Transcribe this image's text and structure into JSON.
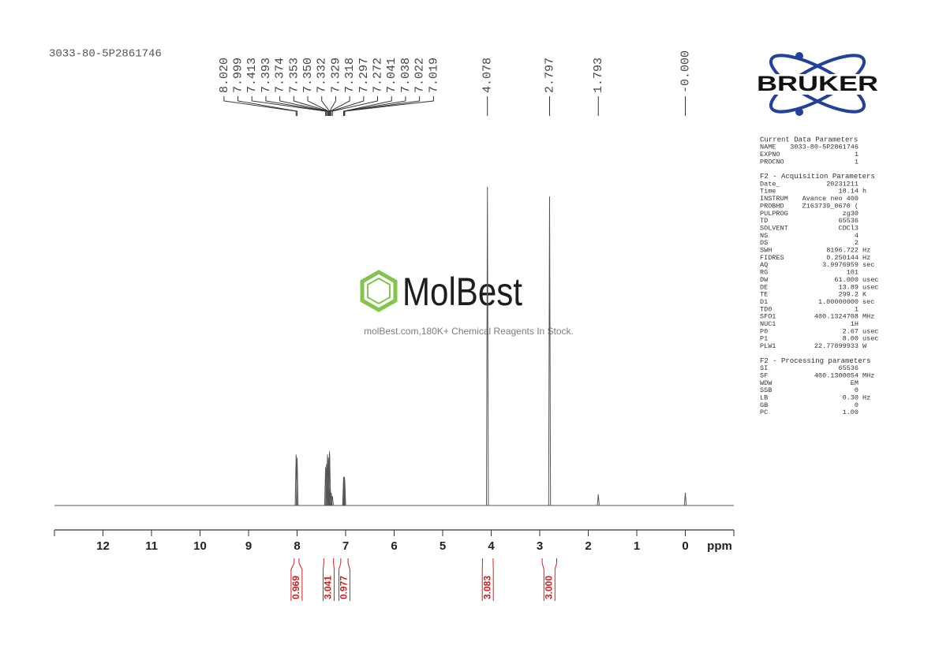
{
  "header": {
    "sample_id": "3033-80-5P2861746"
  },
  "logo": {
    "text": "BRUKER"
  },
  "watermark": {
    "brand": "MolBest",
    "tagline": "molBest.com,180K+ Chemical Reagents In Stock."
  },
  "chart_data": {
    "type": "nmr",
    "x_label": "ppm",
    "xlim": [
      13,
      -1
    ],
    "xticks": [
      12,
      11,
      10,
      9,
      8,
      7,
      6,
      5,
      4,
      3,
      2,
      1,
      0
    ],
    "peaks": {
      "x": [
        8.02,
        7.999,
        7.413,
        7.393,
        7.374,
        7.353,
        7.35,
        7.332,
        7.329,
        7.318,
        7.297,
        7.272,
        7.041,
        7.038,
        7.022,
        7.019,
        4.078,
        2.797,
        1.793,
        0
      ],
      "x_labels": [
        "8.020",
        "7.999",
        "7.413",
        "7.393",
        "7.374",
        "7.353",
        "7.350",
        "7.332",
        "7.329",
        "7.318",
        "7.297",
        "7.272",
        "7.041",
        "7.038",
        "7.022",
        "7.019",
        "4.078",
        "2.797",
        "1.793",
        "-0.000"
      ],
      "values": [
        16,
        15,
        12,
        13,
        16,
        15,
        14,
        17,
        16,
        6,
        4,
        3,
        9,
        8,
        9,
        8,
        100,
        97,
        3.5,
        4
      ],
      "color": "#555555"
    },
    "integrals": {
      "values": [
        0.969,
        3.041,
        0.977,
        3.083,
        3
      ],
      "value_labels": [
        "0.969",
        "3.041",
        "0.977",
        "3.083",
        "3.000"
      ],
      "ranges": [
        [
          8.06,
          7.96
        ],
        [
          7.45,
          7.25
        ],
        [
          7.1,
          6.95
        ],
        [
          4.18,
          3.96
        ],
        [
          2.95,
          2.65
        ]
      ],
      "color": "#cc1f1f"
    }
  },
  "parameters": [
    {
      "title": "Current Data Parameters",
      "rows": [
        [
          "NAME",
          "3033-80-5P2861746"
        ],
        [
          "EXPNO",
          "1"
        ],
        [
          "PROCNO",
          "1"
        ]
      ]
    },
    {
      "title": "F2 - Acquisition Parameters",
      "rows": [
        [
          "Date_",
          "20231211"
        ],
        [
          "Time",
          "18.14",
          "h"
        ],
        [
          "INSTRUM",
          "Avance neo 400"
        ],
        [
          "PROBHD",
          "Z163739_0670 ("
        ],
        [
          "PULPROG",
          "zg30"
        ],
        [
          "TD",
          "65536"
        ],
        [
          "SOLVENT",
          "CDCl3"
        ],
        [
          "NS",
          "4"
        ],
        [
          "DS",
          "2"
        ],
        [
          "SWH",
          "8196.722",
          "Hz"
        ],
        [
          "FIDRES",
          "0.250144",
          "Hz"
        ],
        [
          "AQ",
          "3.9976959",
          "sec"
        ],
        [
          "RG",
          "101"
        ],
        [
          "DW",
          "61.000",
          "usec"
        ],
        [
          "DE",
          "13.89",
          "usec"
        ],
        [
          "TE",
          "299.2",
          "K"
        ],
        [
          "D1",
          "1.00000000",
          "sec"
        ],
        [
          "TD0",
          "1"
        ],
        [
          "SFO1",
          "400.1324708",
          "MHz"
        ],
        [
          "NUC1",
          "1H"
        ],
        [
          "P0",
          "2.67",
          "usec"
        ],
        [
          "P1",
          "8.00",
          "usec"
        ],
        [
          "PLW1",
          "22.77899933",
          "W"
        ]
      ]
    },
    {
      "title": "F2 - Processing parameters",
      "rows": [
        [
          "SI",
          "65536"
        ],
        [
          "SF",
          "400.1300054",
          "MHz"
        ],
        [
          "WDW",
          "EM"
        ],
        [
          "SSB",
          "0"
        ],
        [
          "LB",
          "0.30",
          "Hz"
        ],
        [
          "GB",
          "0"
        ],
        [
          "PC",
          "1.00"
        ]
      ]
    }
  ]
}
